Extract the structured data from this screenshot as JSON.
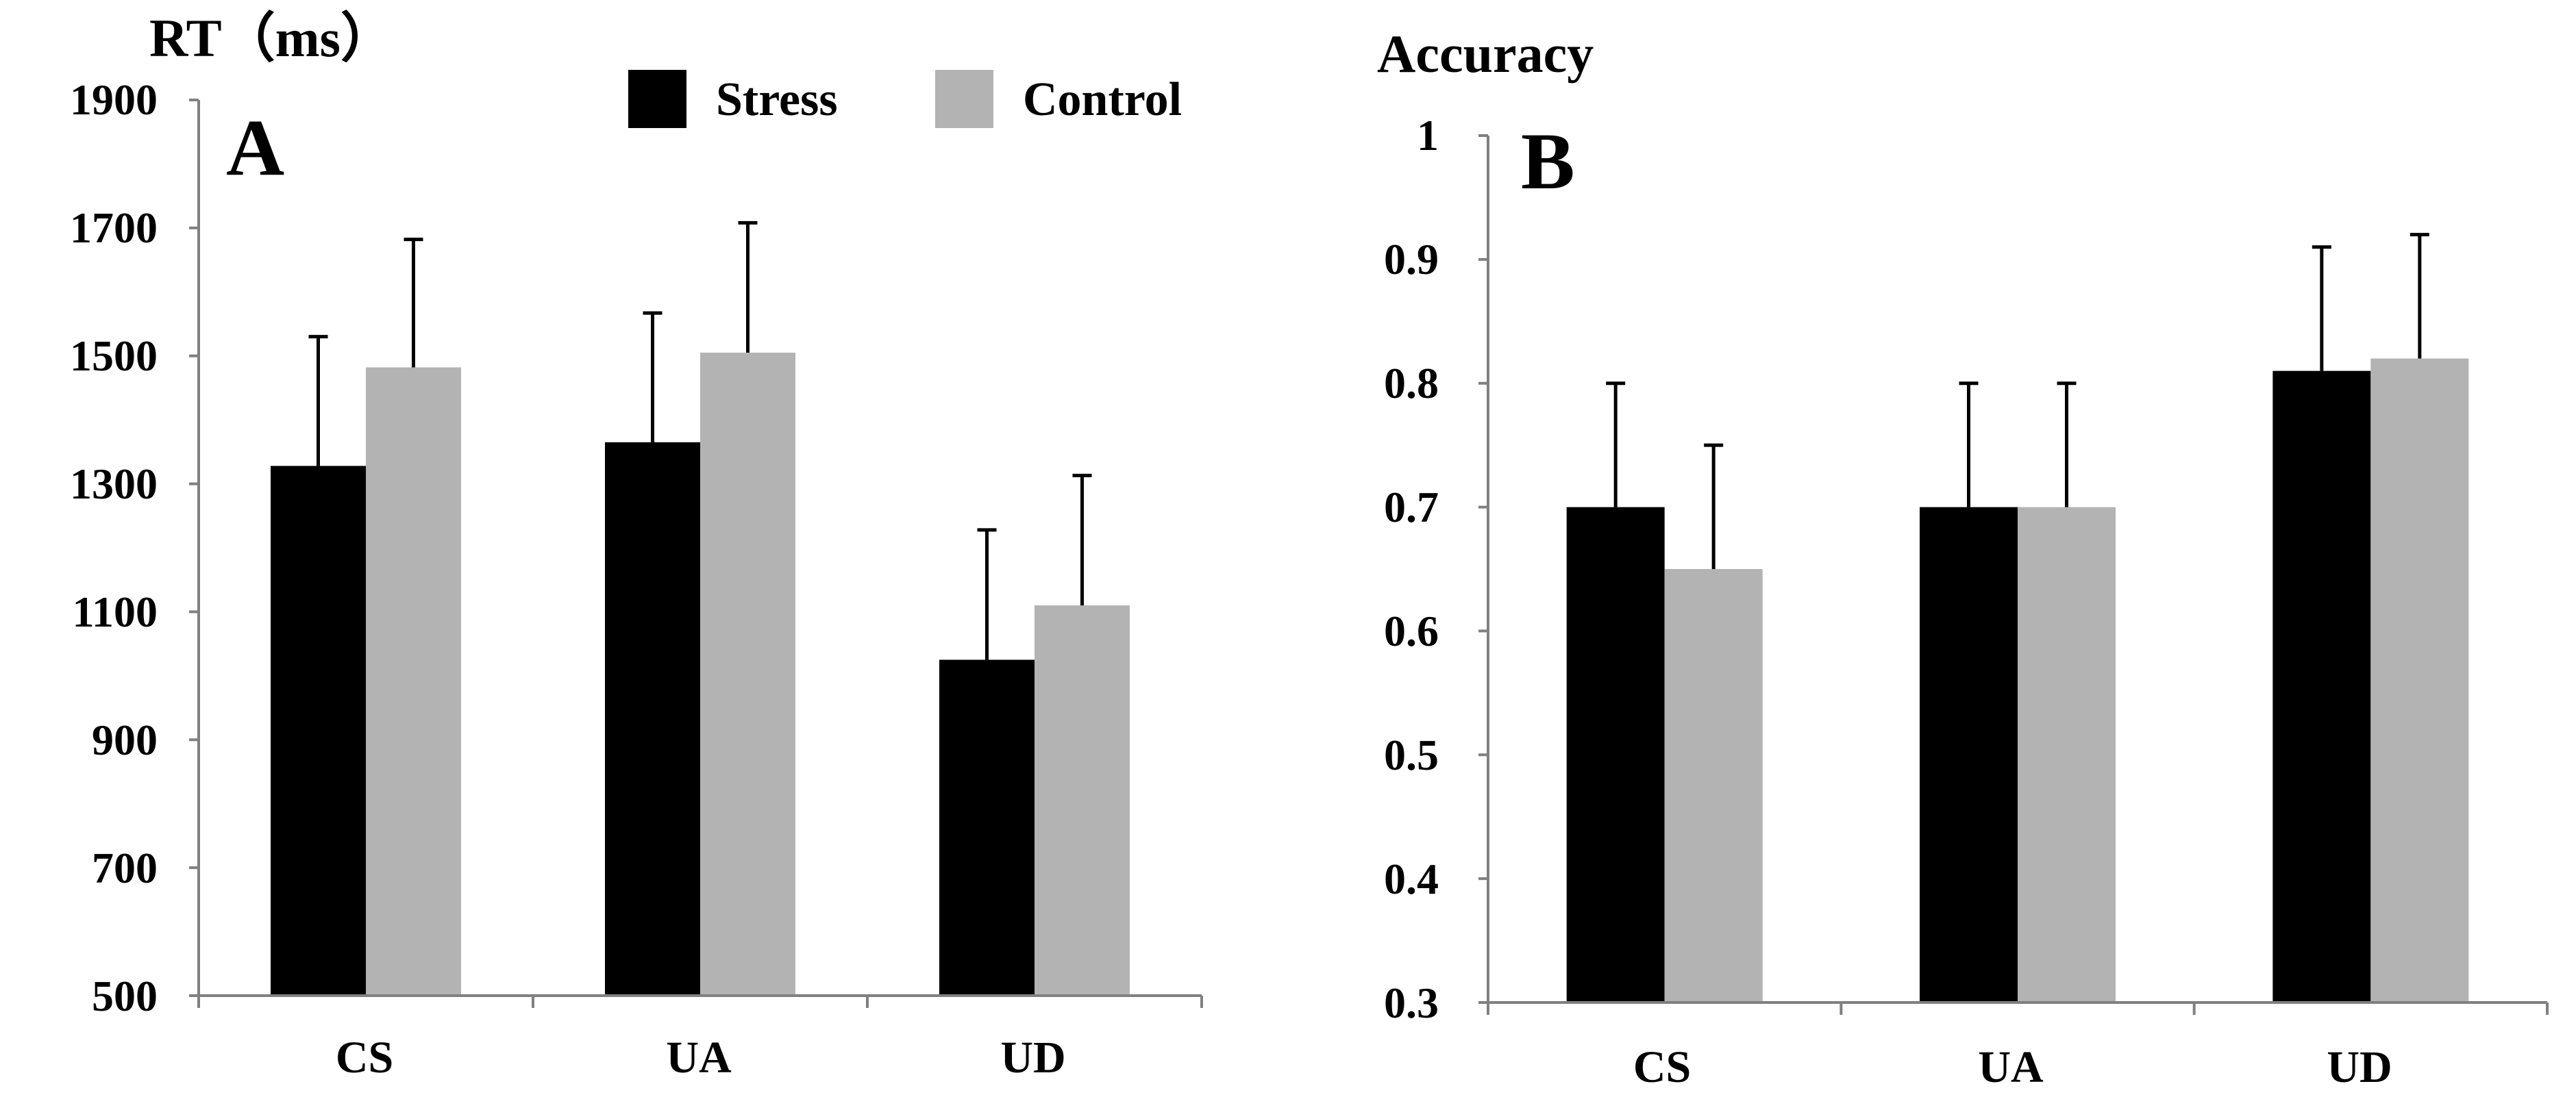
{
  "colors": {
    "stress": "#000000",
    "control": "#b3b3b3",
    "axis": "#808080",
    "error_bar": "#000000",
    "background": "#ffffff"
  },
  "legend": [
    {
      "name": "Stress",
      "color": "#000000"
    },
    {
      "name": "Control",
      "color": "#b3b3b3"
    }
  ],
  "chart_data": [
    {
      "type": "bar",
      "panel": "A",
      "ylabel": "RT（ms）",
      "categories": [
        "CS",
        "UA",
        "UD"
      ],
      "ylim": [
        500,
        1900
      ],
      "yticks": [
        500,
        700,
        900,
        1100,
        1300,
        1500,
        1700,
        1900
      ],
      "ytick_labels": [
        "500",
        "700",
        "900",
        "1100",
        "1300",
        "1500",
        "1700",
        "1900"
      ],
      "series": [
        {
          "name": "Stress",
          "values": [
            1328,
            1365,
            1025
          ],
          "error": [
            202,
            202,
            203
          ]
        },
        {
          "name": "Control",
          "values": [
            1482,
            1505,
            1110
          ],
          "error": [
            200,
            203,
            203
          ]
        }
      ],
      "legend_position": "top-right"
    },
    {
      "type": "bar",
      "panel": "B",
      "ylabel": "Accuracy",
      "categories": [
        "CS",
        "UA",
        "UD"
      ],
      "ylim": [
        0.3,
        1
      ],
      "yticks": [
        0.3,
        0.4,
        0.5,
        0.6,
        0.7,
        0.8,
        0.9,
        1
      ],
      "ytick_labels": [
        "0.3",
        "0.4",
        "0.5",
        "0.6",
        "0.7",
        "0.8",
        "0.9",
        "1"
      ],
      "series": [
        {
          "name": "Stress",
          "values": [
            0.7,
            0.7,
            0.81
          ],
          "error": [
            0.1,
            0.1,
            0.1
          ]
        },
        {
          "name": "Control",
          "values": [
            0.65,
            0.7,
            0.82
          ],
          "error": [
            0.1,
            0.1,
            0.1
          ]
        }
      ]
    }
  ]
}
